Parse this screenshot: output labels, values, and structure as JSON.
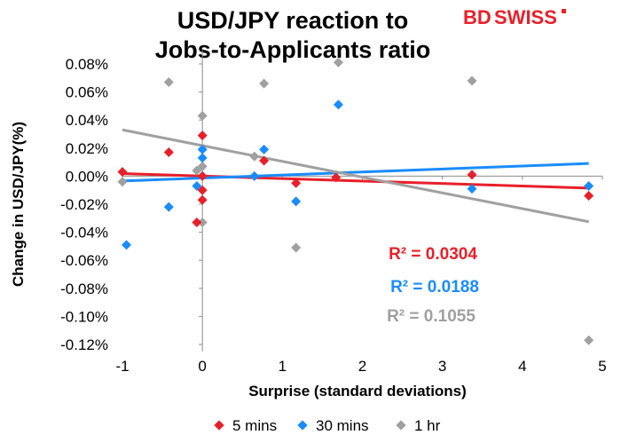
{
  "brand": {
    "logo_text_1": "BD",
    "logo_text_2": "SWISS",
    "color": "#e8202a"
  },
  "chart_data": {
    "type": "scatter",
    "title_line1": "USD/JPY reaction to",
    "title_line2": "Jobs-to-Applicants ratio",
    "xlabel": "Surprise (standard deviations)",
    "ylabel": "Change in USD/JPY(%)",
    "xlim": [
      -1,
      5
    ],
    "ylim": [
      -0.12,
      0.09
    ],
    "x_ticks": [
      -1,
      0,
      1,
      2,
      3,
      4,
      5
    ],
    "x_tick_labels": [
      "-1",
      "0",
      "1",
      "2",
      "3",
      "4",
      "5"
    ],
    "y_ticks": [
      0.08,
      0.06,
      0.04,
      0.02,
      0.0,
      -0.02,
      -0.04,
      -0.06,
      -0.08,
      -0.1,
      -0.12
    ],
    "y_tick_labels": [
      "0.08%",
      "0.06%",
      "0.04%",
      "0.02%",
      "0.00%",
      "-0.02%",
      "-0.04%",
      "-0.06%",
      "-0.08%",
      "-0.10%",
      "-0.12%"
    ],
    "grid": false,
    "legend_position": "bottom",
    "series": [
      {
        "name": "5 mins",
        "color": "#e8202a",
        "marker": "diamond",
        "points": [
          [
            -1.0,
            0.003
          ],
          [
            -0.42,
            0.017
          ],
          [
            -0.07,
            -0.033
          ],
          [
            0.0,
            0.029
          ],
          [
            0.0,
            0.0
          ],
          [
            0.0,
            -0.01
          ],
          [
            0.0,
            -0.017
          ],
          [
            0.77,
            0.011
          ],
          [
            1.17,
            -0.005
          ],
          [
            1.67,
            -0.001
          ],
          [
            3.37,
            0.001
          ],
          [
            4.83,
            -0.014
          ]
        ],
        "trend": {
          "x": [
            -1.0,
            4.83
          ],
          "y": [
            0.0018,
            -0.0085
          ]
        },
        "r2_label": "R² = 0.0304"
      },
      {
        "name": "30 mins",
        "color": "#1a8cff",
        "marker": "diamond",
        "points": [
          [
            -0.95,
            -0.049
          ],
          [
            -0.42,
            -0.022
          ],
          [
            -0.07,
            -0.007
          ],
          [
            0.0,
            0.019
          ],
          [
            0.0,
            0.013
          ],
          [
            0.0,
            0.0
          ],
          [
            0.65,
            0.0
          ],
          [
            0.77,
            0.019
          ],
          [
            1.17,
            -0.018
          ],
          [
            1.7,
            0.051
          ],
          [
            3.37,
            -0.009
          ],
          [
            4.83,
            -0.007
          ]
        ],
        "trend": {
          "x": [
            -1.0,
            4.83
          ],
          "y": [
            -0.0035,
            0.009
          ]
        },
        "r2_label": "R² = 0.0188"
      },
      {
        "name": "1 hr",
        "color": "#a0a0a0",
        "marker": "diamond",
        "points": [
          [
            -1.0,
            -0.004
          ],
          [
            -0.42,
            0.067
          ],
          [
            -0.07,
            0.004
          ],
          [
            0.0,
            0.043
          ],
          [
            0.0,
            0.007
          ],
          [
            0.0,
            -0.033
          ],
          [
            0.65,
            0.014
          ],
          [
            0.77,
            0.066
          ],
          [
            1.17,
            -0.051
          ],
          [
            1.7,
            0.081
          ],
          [
            3.37,
            0.068
          ],
          [
            4.83,
            -0.117
          ]
        ],
        "trend": {
          "x": [
            -1.0,
            4.83
          ],
          "y": [
            0.033,
            -0.0325
          ]
        },
        "r2_label": "R² = 0.1055"
      }
    ]
  }
}
